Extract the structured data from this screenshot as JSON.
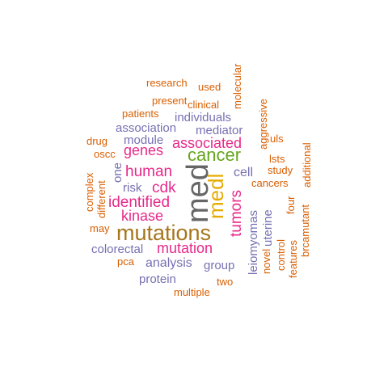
{
  "colors": {
    "orange": "#D95F02",
    "purple": "#7570B3",
    "magenta": "#E7298A",
    "green": "#66A61E",
    "gold": "#E6AB02",
    "brown": "#A6761D",
    "gray": "#666666"
  },
  "words": [
    {
      "text": "research",
      "color": "orange",
      "freq": 1
    },
    {
      "text": "used",
      "color": "orange",
      "freq": 1
    },
    {
      "text": "molecular",
      "color": "orange",
      "freq": 1
    },
    {
      "text": "present",
      "color": "orange",
      "freq": 1
    },
    {
      "text": "clinical",
      "color": "orange",
      "freq": 1
    },
    {
      "text": "aggressive",
      "color": "orange",
      "freq": 1
    },
    {
      "text": "patients",
      "color": "orange",
      "freq": 1
    },
    {
      "text": "individuals",
      "color": "purple",
      "freq": 2
    },
    {
      "text": "association",
      "color": "purple",
      "freq": 2
    },
    {
      "text": "mediator",
      "color": "purple",
      "freq": 2
    },
    {
      "text": "drug",
      "color": "orange",
      "freq": 1
    },
    {
      "text": "module",
      "color": "purple",
      "freq": 2
    },
    {
      "text": "associated",
      "color": "magenta",
      "freq": 3
    },
    {
      "text": "uls",
      "color": "orange",
      "freq": 1
    },
    {
      "text": "oscc",
      "color": "orange",
      "freq": 1
    },
    {
      "text": "genes",
      "color": "magenta",
      "freq": 3
    },
    {
      "text": "cancer",
      "color": "green",
      "freq": 4
    },
    {
      "text": "lsts",
      "color": "orange",
      "freq": 1
    },
    {
      "text": "additional",
      "color": "orange",
      "freq": 1
    },
    {
      "text": "complex",
      "color": "orange",
      "freq": 1
    },
    {
      "text": "one",
      "color": "purple",
      "freq": 2
    },
    {
      "text": "human",
      "color": "magenta",
      "freq": 3
    },
    {
      "text": "cell",
      "color": "purple",
      "freq": 2
    },
    {
      "text": "study",
      "color": "orange",
      "freq": 1
    },
    {
      "text": "different",
      "color": "orange",
      "freq": 1
    },
    {
      "text": "risk",
      "color": "purple",
      "freq": 2
    },
    {
      "text": "cdk",
      "color": "magenta",
      "freq": 3
    },
    {
      "text": "med",
      "color": "gray",
      "freq": 7
    },
    {
      "text": "medl",
      "color": "gold",
      "freq": 5
    },
    {
      "text": "tumors",
      "color": "magenta",
      "freq": 3
    },
    {
      "text": "cancers",
      "color": "orange",
      "freq": 1
    },
    {
      "text": "identified",
      "color": "magenta",
      "freq": 3
    },
    {
      "text": "four",
      "color": "orange",
      "freq": 1
    },
    {
      "text": "kinase",
      "color": "magenta",
      "freq": 3
    },
    {
      "text": "leiomyomas",
      "color": "purple",
      "freq": 2
    },
    {
      "text": "uterine",
      "color": "purple",
      "freq": 2
    },
    {
      "text": "may",
      "color": "orange",
      "freq": 1
    },
    {
      "text": "mutations",
      "color": "brown",
      "freq": 6
    },
    {
      "text": "control",
      "color": "orange",
      "freq": 1
    },
    {
      "text": "brcamutant",
      "color": "orange",
      "freq": 1
    },
    {
      "text": "novel",
      "color": "orange",
      "freq": 1
    },
    {
      "text": "features",
      "color": "orange",
      "freq": 1
    },
    {
      "text": "colorectal",
      "color": "purple",
      "freq": 2
    },
    {
      "text": "mutation",
      "color": "magenta",
      "freq": 3
    },
    {
      "text": "pca",
      "color": "orange",
      "freq": 1
    },
    {
      "text": "analysis",
      "color": "purple",
      "freq": 2
    },
    {
      "text": "group",
      "color": "purple",
      "freq": 2
    },
    {
      "text": "protein",
      "color": "purple",
      "freq": 2
    },
    {
      "text": "two",
      "color": "orange",
      "freq": 1
    },
    {
      "text": "multiple",
      "color": "orange",
      "freq": 1
    }
  ]
}
